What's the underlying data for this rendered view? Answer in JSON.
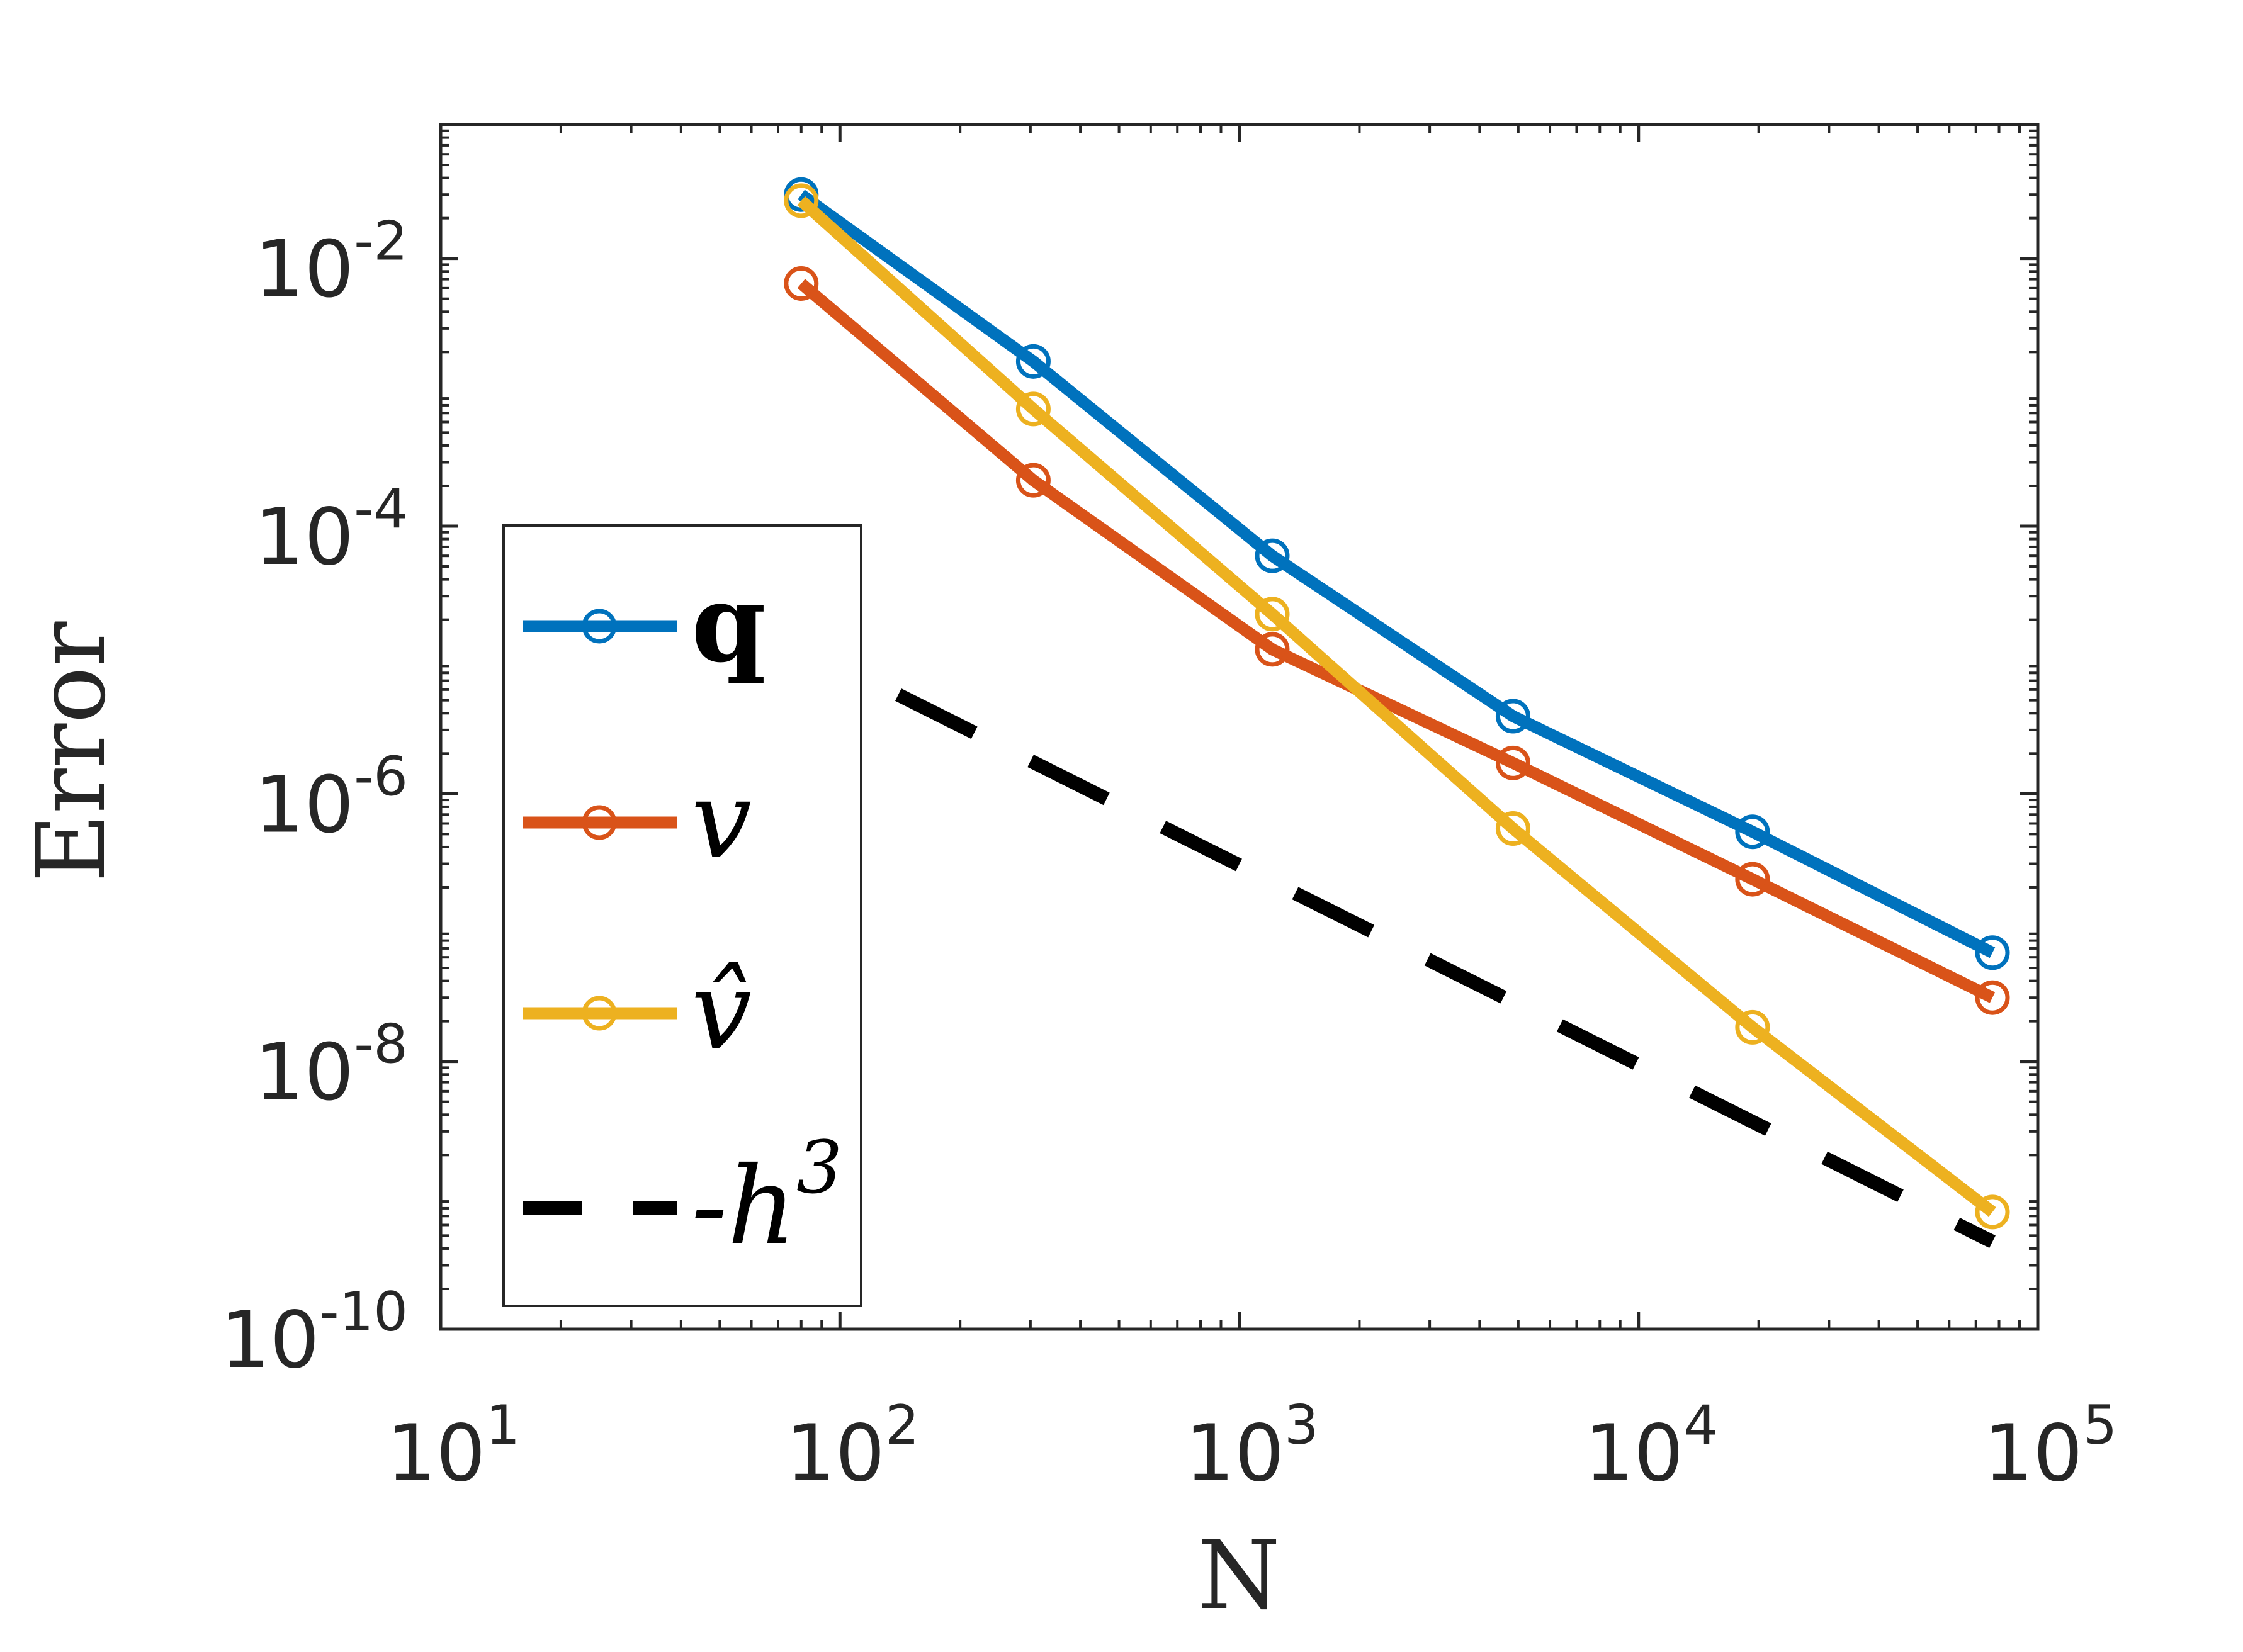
{
  "chart_data": {
    "type": "line",
    "xscale": "log",
    "yscale": "log",
    "xlabel": "N",
    "ylabel": "Error",
    "xlim": [
      10,
      100000
    ],
    "ylim": [
      1e-10,
      0.1
    ],
    "grid": false,
    "legend_position": "left",
    "x_ticks": [
      {
        "base": "10",
        "exp": "1",
        "value": 10
      },
      {
        "base": "10",
        "exp": "2",
        "value": 100
      },
      {
        "base": "10",
        "exp": "3",
        "value": 1000
      },
      {
        "base": "10",
        "exp": "4",
        "value": 10000
      },
      {
        "base": "10",
        "exp": "5",
        "value": 100000
      }
    ],
    "y_ticks": [
      {
        "base": "10",
        "exp": "-2",
        "value": 0.01
      },
      {
        "base": "10",
        "exp": "-4",
        "value": 0.0001
      },
      {
        "base": "10",
        "exp": "-6",
        "value": 1e-06
      },
      {
        "base": "10",
        "exp": "-8",
        "value": 1e-08
      },
      {
        "base": "10",
        "exp": "-10",
        "value": 1e-10
      }
    ],
    "x": [
      80,
      305,
      1210,
      4850,
      19300,
      77000
    ],
    "series": [
      {
        "name": "q",
        "color": "#0072BD",
        "marker": "circle",
        "dashed": false,
        "bold": true,
        "values": [
          0.03,
          0.0017,
          6e-05,
          3.8e-06,
          5.2e-07,
          6.5e-08
        ]
      },
      {
        "name": "v",
        "color": "#D95319",
        "marker": "circle",
        "dashed": false,
        "bold": false,
        "values": [
          0.0065,
          0.00022,
          1.2e-05,
          1.7e-06,
          2.3e-07,
          3e-08
        ]
      },
      {
        "name": "v̂",
        "color": "#EDB120",
        "marker": "circle",
        "dashed": false,
        "bold": false,
        "values": [
          0.027,
          0.00075,
          2.2e-05,
          5.5e-07,
          1.8e-08,
          7.5e-10
        ]
      },
      {
        "name": "-h³",
        "color": "#000000",
        "marker": "none",
        "dashed": true,
        "bold": false,
        "x": [
          140,
          77000
        ],
        "values": [
          5.5e-06,
          4.5e-10
        ]
      }
    ],
    "legend": [
      {
        "label": "q",
        "series": 0
      },
      {
        "label": "v",
        "series": 1
      },
      {
        "label": "v̂",
        "series": 2
      },
      {
        "label": "-h",
        "sup": "3",
        "series": 3
      }
    ]
  }
}
